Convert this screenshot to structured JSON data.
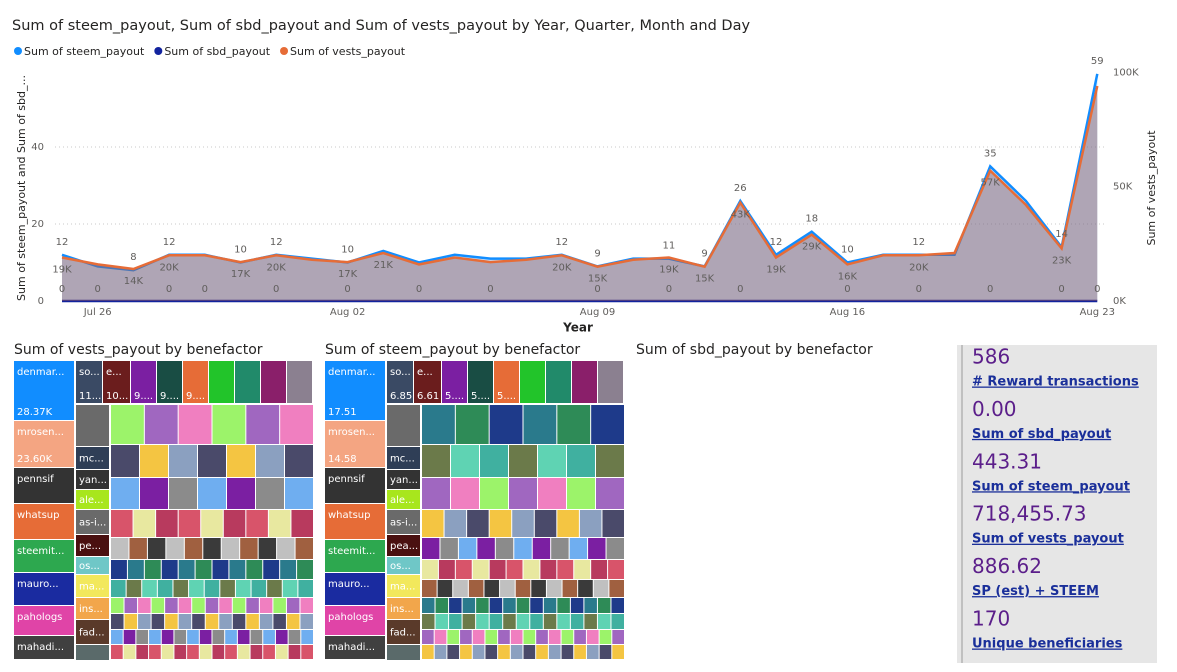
{
  "chart_data": [
    {
      "type": "line",
      "title": "Sum of steem_payout, Sum of sbd_payout and Sum of vests_payout by Year, Quarter, Month and Day",
      "x_label": "Year",
      "y_label": "Sum of steem_payout and Sum of sbd_...",
      "y2_label": "Sum of vests_payout",
      "categories": [
        null,
        "Jul 26",
        null,
        null,
        null,
        null,
        null,
        null,
        "Aug 02",
        null,
        null,
        null,
        null,
        null,
        null,
        "Aug 09",
        null,
        null,
        null,
        null,
        null,
        null,
        "Aug 16",
        null,
        null,
        null,
        null,
        null,
        null,
        "Aug 23"
      ],
      "ylim": [
        0,
        60
      ],
      "yticks": [
        0,
        20,
        40
      ],
      "y2lim": [
        0,
        101000
      ],
      "y2ticks": [
        {
          "value": 0,
          "label": "0K"
        },
        {
          "value": 50000,
          "label": "50K"
        },
        {
          "value": 100000,
          "label": "100K"
        }
      ],
      "grid": true,
      "series": [
        {
          "name": "Sum of steem_payout",
          "color": "#118dff",
          "values": [
            12,
            9,
            8,
            12,
            12,
            10,
            12,
            11,
            10,
            13,
            10,
            12,
            11,
            11,
            12,
            9,
            11,
            11,
            9,
            26,
            12,
            18,
            10,
            12,
            12,
            12,
            35,
            26,
            14,
            59
          ],
          "value_labels": [
            "12",
            null,
            "8",
            "12",
            null,
            "10",
            "12",
            null,
            "10",
            null,
            null,
            null,
            null,
            null,
            "12",
            "9",
            null,
            "11",
            "9",
            "26",
            "12",
            "18",
            "10",
            null,
            "12",
            null,
            "35",
            null,
            "14",
            "59"
          ]
        },
        {
          "name": "Sum of sbd_payout",
          "color": "#12239e",
          "values": [
            0,
            0,
            0,
            0,
            0,
            0,
            0,
            0,
            0,
            0,
            0,
            0,
            0,
            0,
            0,
            0,
            0,
            0,
            0,
            0,
            0,
            0,
            0,
            0,
            0,
            0,
            0,
            0,
            0,
            0
          ],
          "value_labels": [
            "0",
            "0",
            null,
            "0",
            "0",
            null,
            "0",
            null,
            "0",
            null,
            "0",
            null,
            "0",
            null,
            null,
            "0",
            null,
            "0",
            null,
            "0",
            null,
            null,
            "0",
            null,
            "0",
            null,
            "0",
            null,
            "0",
            "0"
          ]
        },
        {
          "name": "Sum of vests_payout",
          "color": "#e66c37",
          "axis": "y2",
          "values": [
            19000,
            16000,
            14000,
            20000,
            20000,
            17000,
            20000,
            18000,
            17000,
            21000,
            16000,
            19000,
            17000,
            18000,
            20000,
            15000,
            18000,
            19000,
            15000,
            43000,
            19000,
            29000,
            16000,
            20000,
            20000,
            21000,
            57000,
            42000,
            23000,
            94000
          ],
          "value_labels": [
            "19K",
            null,
            "14K",
            "20K",
            null,
            "17K",
            "20K",
            null,
            "17K",
            "21K",
            null,
            null,
            null,
            null,
            "20K",
            "15K",
            null,
            "19K",
            "15K",
            "43K",
            "19K",
            "29K",
            "16K",
            null,
            "20K",
            null,
            "57K",
            null,
            "23K",
            null
          ]
        }
      ]
    },
    {
      "type": "treemap",
      "title": "Sum of vests_payout by benefactor",
      "items": [
        {
          "label": "denmar...",
          "value": 28370,
          "value_label": "28.37K",
          "color": "#118dff"
        },
        {
          "label": "mrosen...",
          "value": 23600,
          "value_label": "23.60K",
          "color": "#f4a582"
        },
        {
          "label": "pennsif",
          "color": "#333333"
        },
        {
          "label": "whatsup",
          "color": "#e66c37"
        },
        {
          "label": "steemit...",
          "color": "#2da84f"
        },
        {
          "label": "mauro...",
          "color": "#1a2ba0"
        },
        {
          "label": "pahologs",
          "color": "#e044a7"
        },
        {
          "label": "mahadi...",
          "color": "#404040"
        }
      ],
      "top": [
        {
          "label": "so...",
          "value_label": "11...",
          "color": "#3a4a64"
        },
        {
          "label": "e...",
          "value_label": "10...",
          "color": "#6b1d1d"
        },
        {
          "value_label": "9....",
          "color": "#7b1fa2"
        },
        {
          "value_label": "9....",
          "color": "#194d44"
        },
        {
          "value_label": "9....",
          "color": "#e66c37"
        },
        {
          "color": "#22c42a"
        },
        {
          "color": "#218a6a"
        },
        {
          "color": "#8a1f6a"
        },
        {
          "color": "#8b8090"
        }
      ],
      "second": [
        {
          "label": "mc...",
          "color": "#2f3e56"
        },
        {
          "label": "yan...",
          "color": "#333333"
        },
        {
          "label": "ale...",
          "color": "#a8e61d"
        },
        {
          "label": "as-i...",
          "color": "#6a6a6a"
        },
        {
          "label": "pe...",
          "color": "#4a1010"
        },
        {
          "label": "os...",
          "color": "#6fc7c7"
        },
        {
          "label": "ma...",
          "color": "#f2e85c"
        },
        {
          "label": "ins...",
          "color": "#f2a64b"
        },
        {
          "label": "fad...",
          "color": "#5a3a2a"
        }
      ]
    },
    {
      "type": "treemap",
      "title": "Sum of steem_payout by benefactor",
      "items": [
        {
          "label": "denmar...",
          "value": 17.51,
          "value_label": "17.51",
          "color": "#118dff"
        },
        {
          "label": "mrosen...",
          "value": 14.58,
          "value_label": "14.58",
          "color": "#f4a582"
        },
        {
          "label": "pennsif",
          "color": "#333333"
        },
        {
          "label": "whatsup",
          "color": "#e66c37"
        },
        {
          "label": "steemit...",
          "color": "#2da84f"
        },
        {
          "label": "mauro...",
          "color": "#1a2ba0"
        },
        {
          "label": "pahologs",
          "color": "#e044a7"
        },
        {
          "label": "mahadi...",
          "color": "#404040"
        }
      ],
      "top": [
        {
          "label": "so...",
          "value_label": "6.85",
          "color": "#3a4a64"
        },
        {
          "label": "e...",
          "value_label": "6.61",
          "color": "#6b1d1d"
        },
        {
          "value_label": "5....",
          "color": "#7b1fa2"
        },
        {
          "value_label": "5....",
          "color": "#194d44"
        },
        {
          "value_label": "5....",
          "color": "#e66c37"
        },
        {
          "color": "#22c42a"
        },
        {
          "color": "#218a6a"
        },
        {
          "color": "#8a1f6a"
        },
        {
          "color": "#8b8090"
        }
      ],
      "second": [
        {
          "label": "mc...",
          "color": "#2f3e56"
        },
        {
          "label": "yan...",
          "color": "#333333"
        },
        {
          "label": "ale...",
          "color": "#a8e61d"
        },
        {
          "label": "as-i...",
          "color": "#6a6a6a"
        },
        {
          "label": "pea...",
          "color": "#4a1010"
        },
        {
          "label": "os...",
          "color": "#6fc7c7"
        },
        {
          "label": "ma...",
          "color": "#f2e85c"
        },
        {
          "label": "ins...",
          "color": "#f2a64b"
        },
        {
          "label": "fad...",
          "color": "#5a3a2a"
        }
      ]
    },
    {
      "type": "treemap",
      "title": "Sum of sbd_payout by benefactor",
      "items": []
    }
  ],
  "cards": [
    {
      "value": "586",
      "label": "# Reward transactions"
    },
    {
      "value": "0.00",
      "label": "Sum of sbd_payout"
    },
    {
      "value": "443.31",
      "label": "Sum of steem_payout"
    },
    {
      "value": "718,455.73",
      "label": "Sum of vests_payout"
    },
    {
      "value": "886.62",
      "label": "SP (est) + STEEM"
    },
    {
      "value": "170",
      "label": "Unique beneficiaries"
    }
  ]
}
